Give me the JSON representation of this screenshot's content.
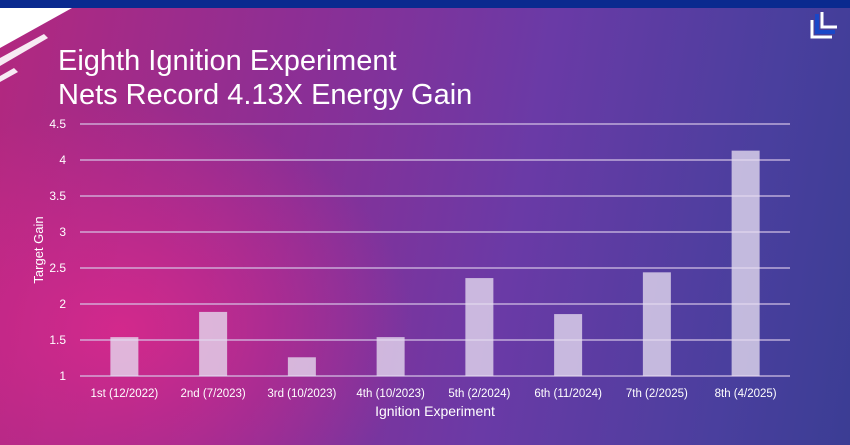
{
  "title_lines": [
    "Eighth Ignition Experiment",
    "Nets Record 4.13X Energy Gain"
  ],
  "colors": {
    "top_bar": "#0a2a8f",
    "bar_fill": "#e6dcf0",
    "grid": "#d8c8e8",
    "text": "#ffffff"
  },
  "logo": "LLNL",
  "chart_data": {
    "type": "bar",
    "title": "Eighth Ignition Experiment Nets Record 4.13X Energy Gain",
    "xlabel": "Ignition Experiment",
    "ylabel": "Target Gain",
    "categories": [
      "1st (12/2022)",
      "2nd (7/2023)",
      "3rd (10/2023)",
      "4th (10/2023)",
      "5th (2/2024)",
      "6th (11/2024)",
      "7th (2/2025)",
      "8th (4/2025)"
    ],
    "values": [
      1.54,
      1.89,
      1.26,
      1.54,
      2.36,
      1.86,
      2.44,
      4.13
    ],
    "ylim": [
      1,
      4.5
    ],
    "yticks": [
      "1",
      "1.5",
      "2",
      "2.5",
      "3",
      "3.5",
      "4",
      "4.5"
    ],
    "grid": true,
    "legend": "none"
  }
}
